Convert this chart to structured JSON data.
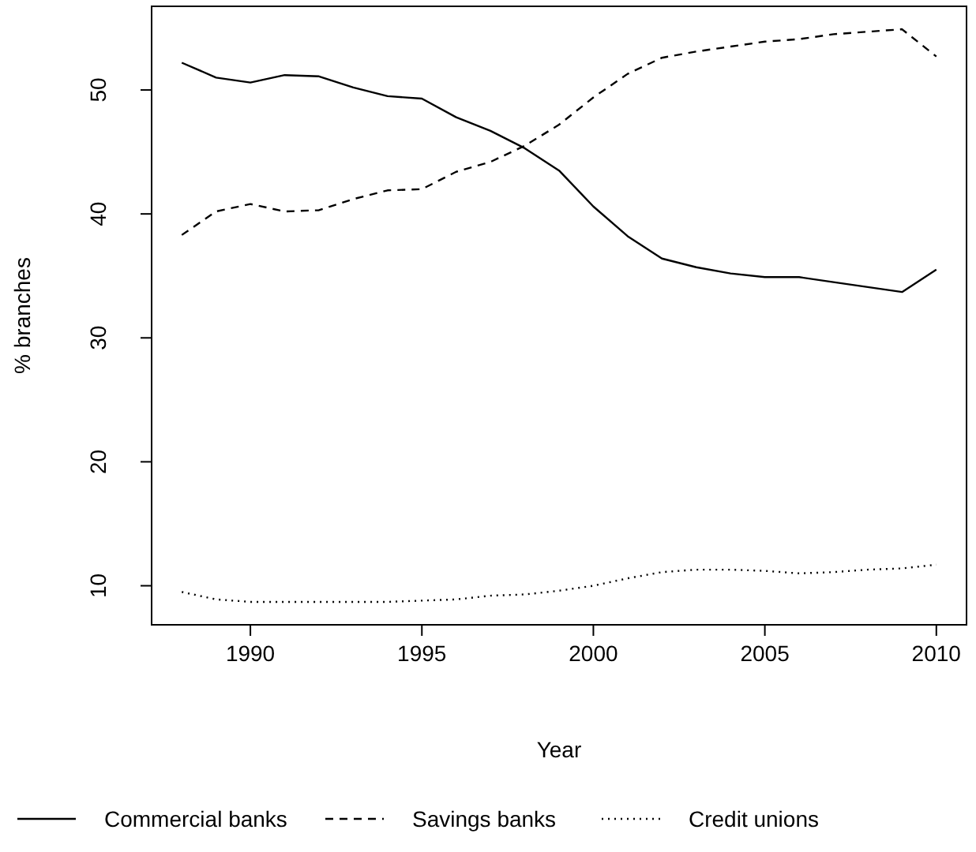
{
  "chart_data": {
    "type": "line",
    "xlabel": "Year",
    "ylabel": "% branches",
    "x": [
      1988,
      1989,
      1990,
      1991,
      1992,
      1993,
      1994,
      1995,
      1996,
      1997,
      1998,
      1999,
      2000,
      2001,
      2002,
      2003,
      2004,
      2005,
      2006,
      2007,
      2008,
      2009,
      2010
    ],
    "series": [
      {
        "name": "Commercial banks",
        "color": "#000000",
        "line_style": "solid",
        "values": [
          52.2,
          51.0,
          50.6,
          51.2,
          51.1,
          50.2,
          49.5,
          49.3,
          47.8,
          46.7,
          45.3,
          43.5,
          40.6,
          38.2,
          36.4,
          35.7,
          35.2,
          34.9,
          34.9,
          34.5,
          34.1,
          33.7,
          35.5
        ]
      },
      {
        "name": "Savings banks",
        "color": "#000000",
        "line_style": "dashed",
        "values": [
          38.3,
          40.2,
          40.8,
          40.2,
          40.3,
          41.2,
          41.9,
          42.0,
          43.4,
          44.2,
          45.5,
          47.2,
          49.4,
          51.3,
          52.6,
          53.1,
          53.5,
          53.9,
          54.1,
          54.5,
          54.7,
          54.9,
          52.7
        ]
      },
      {
        "name": "Credit unions",
        "color": "#000000",
        "line_style": "dotted",
        "values": [
          9.5,
          8.9,
          8.7,
          8.7,
          8.7,
          8.7,
          8.7,
          8.8,
          8.9,
          9.2,
          9.3,
          9.6,
          10.0,
          10.6,
          11.1,
          11.3,
          11.3,
          11.2,
          11.0,
          11.1,
          11.3,
          11.4,
          11.7
        ]
      }
    ],
    "xlim": [
      1987.12,
      2010.88
    ],
    "xticks": [
      1990,
      1995,
      2000,
      2005,
      2010
    ],
    "ylim": [
      6.85,
      56.75
    ],
    "yticks": [
      10,
      20,
      30,
      40,
      50
    ],
    "grid": false,
    "legend": "bottom"
  }
}
